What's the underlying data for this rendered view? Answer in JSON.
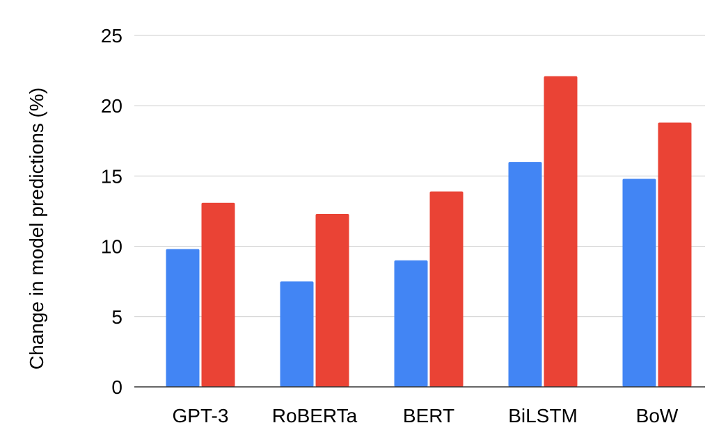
{
  "chart_data": {
    "type": "bar",
    "title": "",
    "xlabel": "",
    "ylabel": "Change in model predictions (%)",
    "categories": [
      "GPT-3",
      "RoBERTa",
      "BERT",
      "BiLSTM",
      "BoW"
    ],
    "series": [
      {
        "values": [
          9.8,
          7.5,
          9.0,
          16.0,
          14.8
        ],
        "color": "#4285F4"
      },
      {
        "values": [
          13.1,
          12.3,
          13.9,
          22.1,
          18.8
        ],
        "color": "#EA4335"
      }
    ],
    "ylim": [
      0,
      25
    ],
    "yticks": [
      "0",
      "5",
      "10",
      "15",
      "20",
      "25"
    ],
    "grid": true,
    "legend": "none"
  }
}
